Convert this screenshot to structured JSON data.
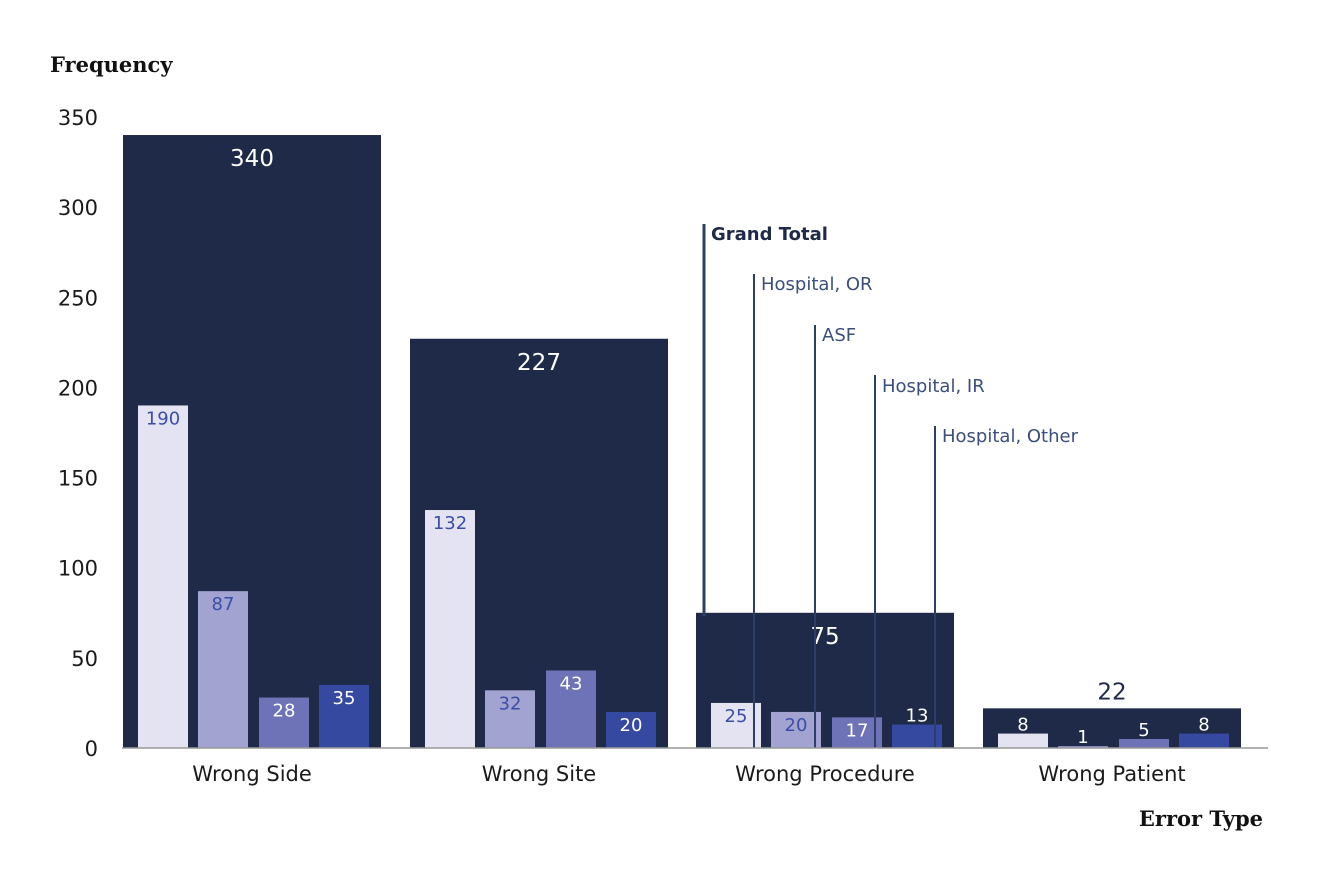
{
  "chart_data": {
    "type": "bar",
    "title": "",
    "xlabel": "Error Type",
    "ylabel": "Frequency",
    "ylim": [
      0,
      350
    ],
    "yticks": [
      0,
      50,
      100,
      150,
      200,
      250,
      300,
      350
    ],
    "categories": [
      "Wrong Side",
      "Wrong Site",
      "Wrong Procedure",
      "Wrong Patient"
    ],
    "totals_series": {
      "name": "Grand Total",
      "color": "#1f2a48",
      "values": [
        340,
        227,
        75,
        22
      ]
    },
    "series": [
      {
        "name": "Hospital, OR",
        "color": "#e3e3f1",
        "label_color": "#3b4ea6",
        "values": [
          190,
          132,
          25,
          8
        ]
      },
      {
        "name": "ASF",
        "color": "#a3a3d2",
        "label_color": "#3b4ea6",
        "values": [
          87,
          32,
          20,
          1
        ]
      },
      {
        "name": "Hospital, IR",
        "color": "#6e72b6",
        "label_color": "#ffffff",
        "values": [
          28,
          43,
          17,
          5
        ]
      },
      {
        "name": "Hospital, Other",
        "color": "#3549a0",
        "label_color": "#ffffff",
        "values": [
          35,
          20,
          13,
          8
        ]
      }
    ],
    "legend": {
      "placement": "center-right",
      "style": "leader-lines",
      "entries": [
        "Grand Total",
        "Hospital, OR",
        "ASF",
        "Hospital, IR",
        "Hospital, Other"
      ]
    },
    "grid": false
  },
  "colors": {
    "axis_line": "#999999",
    "legend_line": "#2e3f66",
    "total_label_inside": "#ffffff",
    "total_label_outside": "#1f2a48",
    "grand_total_text": "#1f2a48",
    "series_legend_text": "#3c4f7a"
  }
}
